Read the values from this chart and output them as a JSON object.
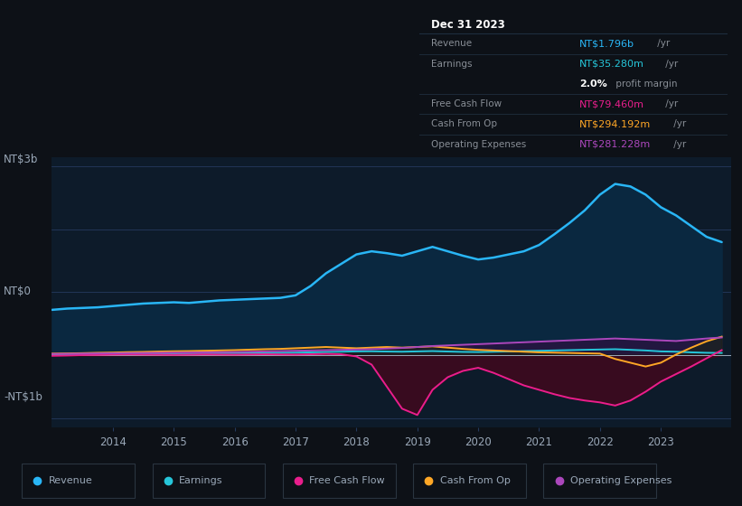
{
  "bg_color": "#0d1117",
  "plot_bg_color": "#0d1b2a",
  "grid_color": "#243a5e",
  "text_color": "#9aa8b8",
  "ylabel_3b": "NT$3b",
  "ylabel_0": "NT$0",
  "ylabel_neg1b": "-NT$1b",
  "ylim": [
    -1150000000.0,
    3150000000.0
  ],
  "revenue_color": "#29b6f6",
  "earnings_color": "#26c6da",
  "fcf_color": "#e91e8c",
  "cashfromop_color": "#ffa726",
  "opex_color": "#ab47bc",
  "revenue_fill_color": "#0a2840",
  "fcf_neg_fill_color": "#3d0a1e",
  "opex_fill_color": "#2d1040",
  "earnings_fill_color": "#0a2830",
  "series_x": [
    2013.0,
    2013.25,
    2013.5,
    2013.75,
    2014.0,
    2014.25,
    2014.5,
    2014.75,
    2015.0,
    2015.25,
    2015.5,
    2015.75,
    2016.0,
    2016.25,
    2016.5,
    2016.75,
    2017.0,
    2017.25,
    2017.5,
    2017.75,
    2018.0,
    2018.25,
    2018.5,
    2018.75,
    2019.0,
    2019.25,
    2019.5,
    2019.75,
    2020.0,
    2020.25,
    2020.5,
    2020.75,
    2021.0,
    2021.25,
    2021.5,
    2021.75,
    2022.0,
    2022.25,
    2022.5,
    2022.75,
    2023.0,
    2023.25,
    2023.5,
    2023.75,
    2024.0
  ],
  "revenue": [
    720000000.0,
    740000000.0,
    750000000.0,
    760000000.0,
    780000000.0,
    800000000.0,
    820000000.0,
    830000000.0,
    840000000.0,
    830000000.0,
    850000000.0,
    870000000.0,
    880000000.0,
    890000000.0,
    900000000.0,
    910000000.0,
    950000000.0,
    1100000000.0,
    1300000000.0,
    1450000000.0,
    1600000000.0,
    1650000000.0,
    1620000000.0,
    1580000000.0,
    1650000000.0,
    1720000000.0,
    1650000000.0,
    1580000000.0,
    1520000000.0,
    1550000000.0,
    1600000000.0,
    1650000000.0,
    1750000000.0,
    1920000000.0,
    2100000000.0,
    2300000000.0,
    2550000000.0,
    2720000000.0,
    2680000000.0,
    2550000000.0,
    2350000000.0,
    2220000000.0,
    2050000000.0,
    1880000000.0,
    1796000000.0
  ],
  "earnings": [
    15000000.0,
    18000000.0,
    20000000.0,
    22000000.0,
    25000000.0,
    27000000.0,
    28000000.0,
    29000000.0,
    30000000.0,
    31000000.0,
    32000000.0,
    33000000.0,
    34000000.0,
    35000000.0,
    36000000.0,
    38000000.0,
    40000000.0,
    45000000.0,
    50000000.0,
    55000000.0,
    60000000.0,
    62000000.0,
    58000000.0,
    55000000.0,
    60000000.0,
    65000000.0,
    58000000.0,
    52000000.0,
    50000000.0,
    55000000.0,
    60000000.0,
    65000000.0,
    70000000.0,
    75000000.0,
    80000000.0,
    85000000.0,
    90000000.0,
    95000000.0,
    85000000.0,
    75000000.0,
    60000000.0,
    55000000.0,
    45000000.0,
    38000000.0,
    35280000.0
  ],
  "free_cash_flow": [
    -10000000.0,
    -5000000.0,
    2000000.0,
    5000000.0,
    10000000.0,
    12000000.0,
    10000000.0,
    8000000.0,
    5000000.0,
    8000000.0,
    12000000.0,
    10000000.0,
    8000000.0,
    12000000.0,
    15000000.0,
    12000000.0,
    10000000.0,
    15000000.0,
    20000000.0,
    15000000.0,
    -20000000.0,
    -150000000.0,
    -500000000.0,
    -850000000.0,
    -950000000.0,
    -550000000.0,
    -350000000.0,
    -250000000.0,
    -200000000.0,
    -280000000.0,
    -380000000.0,
    -480000000.0,
    -550000000.0,
    -620000000.0,
    -680000000.0,
    -720000000.0,
    -750000000.0,
    -800000000.0,
    -720000000.0,
    -580000000.0,
    -420000000.0,
    -300000000.0,
    -180000000.0,
    -50000000.0,
    79460000.0
  ],
  "cash_from_op": [
    25000000.0,
    28000000.0,
    32000000.0,
    38000000.0,
    42000000.0,
    48000000.0,
    52000000.0,
    58000000.0,
    62000000.0,
    65000000.0,
    70000000.0,
    75000000.0,
    80000000.0,
    88000000.0,
    95000000.0,
    100000000.0,
    110000000.0,
    120000000.0,
    130000000.0,
    120000000.0,
    110000000.0,
    120000000.0,
    130000000.0,
    120000000.0,
    130000000.0,
    140000000.0,
    120000000.0,
    100000000.0,
    85000000.0,
    75000000.0,
    65000000.0,
    55000000.0,
    45000000.0,
    40000000.0,
    35000000.0,
    30000000.0,
    25000000.0,
    -60000000.0,
    -120000000.0,
    -180000000.0,
    -120000000.0,
    10000000.0,
    120000000.0,
    220000000.0,
    294190000.0
  ],
  "opex": [
    20000000.0,
    22000000.0,
    25000000.0,
    28000000.0,
    30000000.0,
    33000000.0,
    35000000.0,
    38000000.0,
    40000000.0,
    42000000.0,
    45000000.0,
    48000000.0,
    50000000.0,
    55000000.0,
    60000000.0,
    65000000.0,
    70000000.0,
    75000000.0,
    80000000.0,
    85000000.0,
    90000000.0,
    95000000.0,
    105000000.0,
    115000000.0,
    130000000.0,
    145000000.0,
    155000000.0,
    165000000.0,
    175000000.0,
    185000000.0,
    195000000.0,
    205000000.0,
    215000000.0,
    225000000.0,
    235000000.0,
    245000000.0,
    255000000.0,
    265000000.0,
    255000000.0,
    245000000.0,
    235000000.0,
    225000000.0,
    245000000.0,
    265000000.0,
    281230000.0
  ],
  "tooltip": {
    "title": "Dec 31 2023",
    "rows": [
      {
        "label": "Revenue",
        "value": "NT$1.796b",
        "unit": " /yr",
        "color": "#29b6f6"
      },
      {
        "label": "Earnings",
        "value": "NT$35.280m",
        "unit": " /yr",
        "color": "#26c6da"
      },
      {
        "label": "",
        "value": "2.0%",
        "unit": " profit margin",
        "color": "#ffffff",
        "bold": true
      },
      {
        "label": "Free Cash Flow",
        "value": "NT$79.460m",
        "unit": " /yr",
        "color": "#e91e8c"
      },
      {
        "label": "Cash From Op",
        "value": "NT$294.192m",
        "unit": " /yr",
        "color": "#ffa726"
      },
      {
        "label": "Operating Expenses",
        "value": "NT$281.228m",
        "unit": " /yr",
        "color": "#ab47bc"
      }
    ]
  },
  "legend_items": [
    {
      "label": "Revenue",
      "color": "#29b6f6"
    },
    {
      "label": "Earnings",
      "color": "#26c6da"
    },
    {
      "label": "Free Cash Flow",
      "color": "#e91e8c"
    },
    {
      "label": "Cash From Op",
      "color": "#ffa726"
    },
    {
      "label": "Operating Expenses",
      "color": "#ab47bc"
    }
  ]
}
